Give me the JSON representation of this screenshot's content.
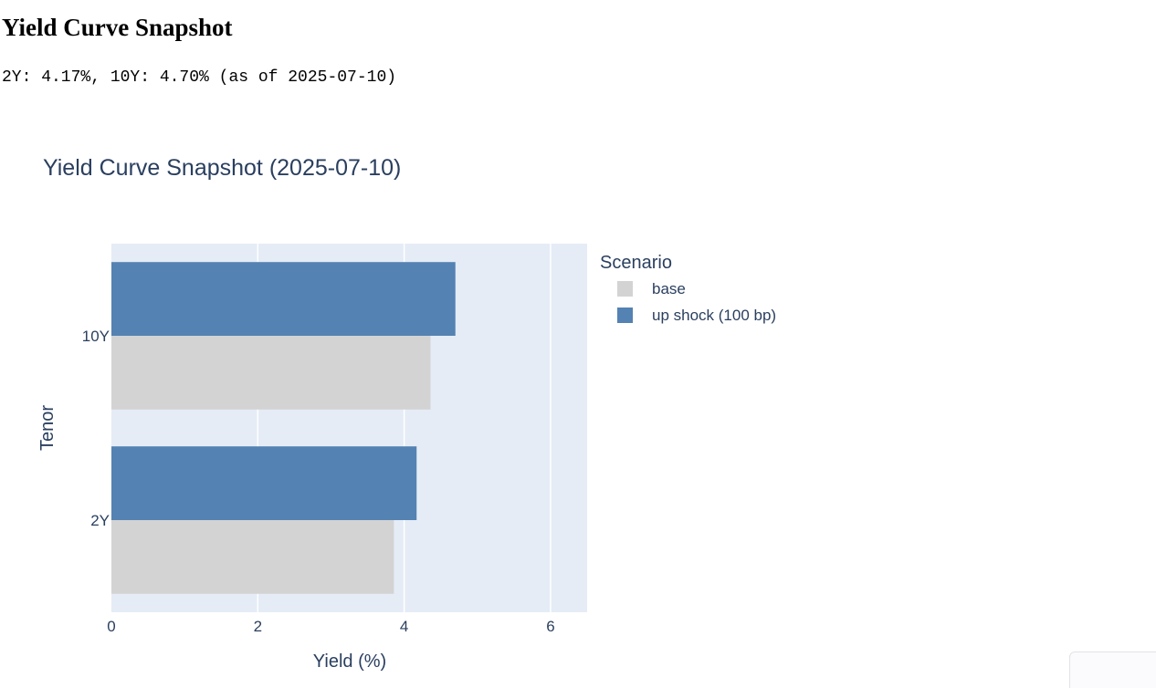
{
  "page": {
    "heading": "Yield Curve Snapshot",
    "summary": "2Y: 4.17%, 10Y: 4.70% (as of 2025-07-10)"
  },
  "chart_data": {
    "type": "bar",
    "orientation": "horizontal",
    "title": "Yield Curve Snapshot (2025-07-10)",
    "xlabel": "Yield (%)",
    "ylabel": "Tenor",
    "categories": [
      "2Y",
      "10Y"
    ],
    "series": [
      {
        "name": "base",
        "values": [
          3.86,
          4.36
        ],
        "color": "#d3d3d3"
      },
      {
        "name": "up shock (100 bp)",
        "values": [
          4.17,
          4.7
        ],
        "color": "#5482b2"
      }
    ],
    "xlim": [
      0,
      6.5
    ],
    "x_ticks": [
      0,
      2,
      4,
      6
    ],
    "legend_title": "Scenario",
    "legend_position": "right",
    "grid": true,
    "colors": {
      "plot_background": "#e5ecf6",
      "gridline": "#ffffff",
      "text": "#2a3f5f"
    }
  }
}
